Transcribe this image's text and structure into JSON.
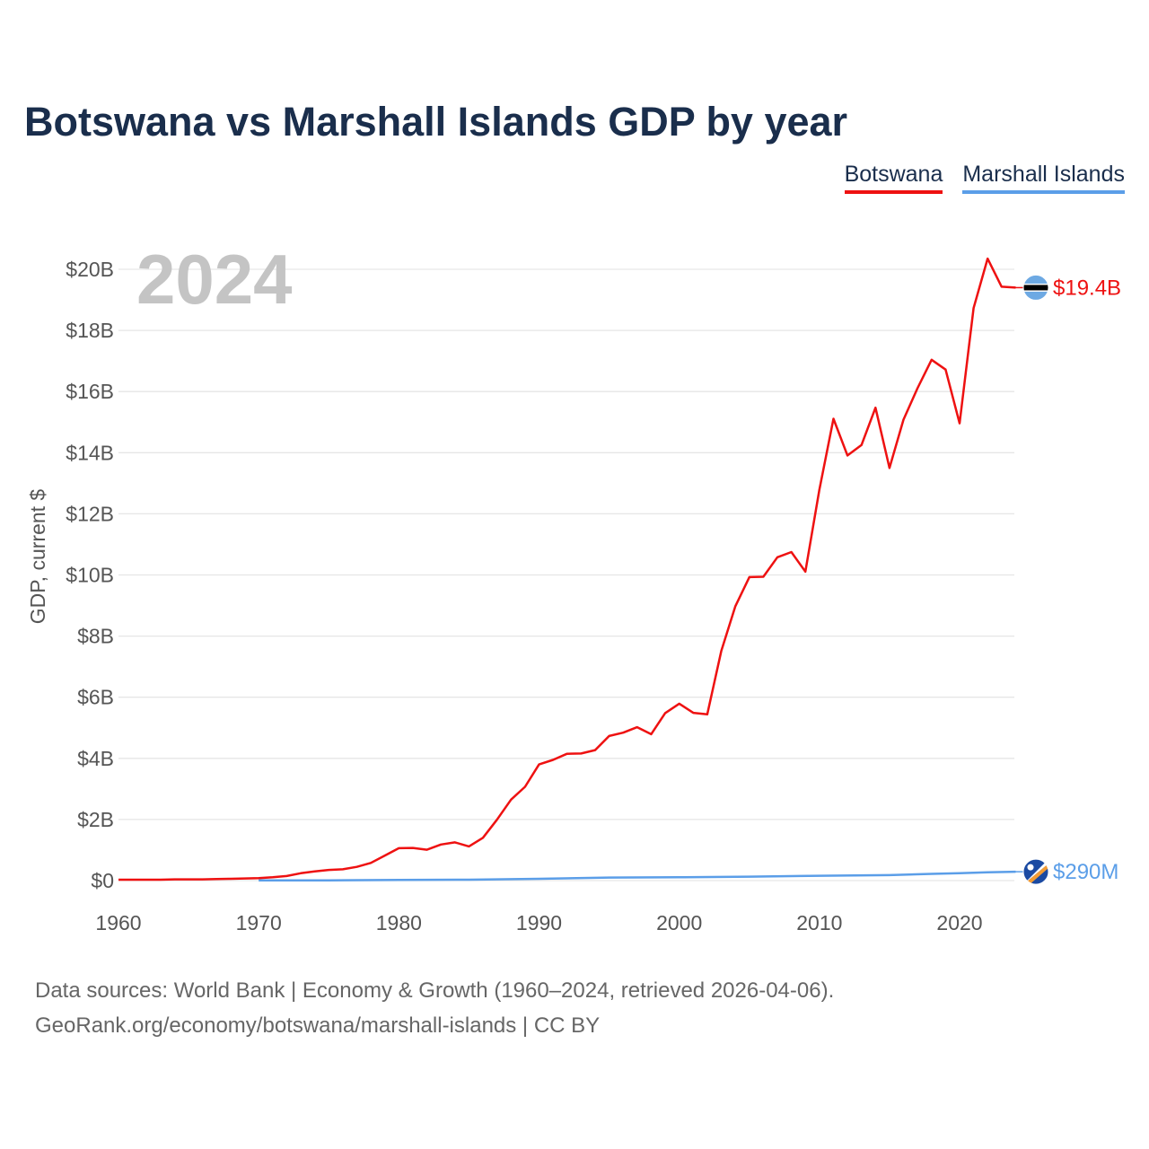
{
  "title": "Botswana vs Marshall Islands GDP by year",
  "legend": [
    {
      "label": "Botswana",
      "color": "#ee1111"
    },
    {
      "label": "Marshall Islands",
      "color": "#5b9ee8"
    }
  ],
  "source": {
    "line1": "Data sources: World Bank | Economy & Growth (1960–2024, retrieved 2026-04-06).",
    "line2": "GeoRank.org/economy/botswana/marshall-islands | CC BY"
  },
  "chart_data": {
    "type": "line",
    "title": "Botswana vs Marshall Islands GDP by year",
    "xlabel": "",
    "ylabel": "GDP, current $",
    "year_label": "2024",
    "xlim": [
      1960,
      2024
    ],
    "ylim": [
      0,
      20
    ],
    "unit": "billions USD",
    "x_ticks": [
      "1960",
      "1970",
      "1980",
      "1990",
      "2000",
      "2010",
      "2020"
    ],
    "y_ticks": [
      "$0",
      "$2B",
      "$4B",
      "$6B",
      "$8B",
      "$10B",
      "$12B",
      "$14B",
      "$16B",
      "$18B",
      "$20B"
    ],
    "grid": true,
    "series": [
      {
        "name": "Botswana",
        "color": "#ee1111",
        "end_label": "$19.4B",
        "flag_icon": "botswana-flag-icon",
        "x": [
          1960,
          1961,
          1962,
          1963,
          1964,
          1965,
          1966,
          1967,
          1968,
          1969,
          1970,
          1971,
          1972,
          1973,
          1974,
          1975,
          1976,
          1977,
          1978,
          1979,
          1980,
          1981,
          1982,
          1983,
          1984,
          1985,
          1986,
          1987,
          1988,
          1989,
          1990,
          1991,
          1992,
          1993,
          1994,
          1995,
          1996,
          1997,
          1998,
          1999,
          2000,
          2001,
          2002,
          2003,
          2004,
          2005,
          2006,
          2007,
          2008,
          2009,
          2010,
          2011,
          2012,
          2013,
          2014,
          2015,
          2016,
          2017,
          2018,
          2019,
          2020,
          2021,
          2022,
          2023,
          2024
        ],
        "values": [
          0.03,
          0.03,
          0.03,
          0.03,
          0.04,
          0.04,
          0.04,
          0.05,
          0.06,
          0.07,
          0.08,
          0.11,
          0.15,
          0.24,
          0.3,
          0.35,
          0.37,
          0.45,
          0.58,
          0.82,
          1.06,
          1.07,
          1.01,
          1.18,
          1.25,
          1.12,
          1.4,
          1.99,
          2.65,
          3.07,
          3.8,
          3.95,
          4.15,
          4.16,
          4.27,
          4.73,
          4.84,
          5.02,
          4.79,
          5.48,
          5.79,
          5.49,
          5.44,
          7.51,
          8.97,
          9.93,
          9.94,
          10.58,
          10.75,
          10.11,
          12.79,
          15.11,
          13.91,
          14.25,
          15.47,
          13.5,
          15.08,
          16.11,
          17.04,
          16.72,
          14.96,
          18.73,
          20.35,
          19.43,
          19.4
        ]
      },
      {
        "name": "Marshall Islands",
        "color": "#5b9ee8",
        "end_label": "$290M",
        "flag_icon": "marshall-islands-flag-icon",
        "x": [
          1970,
          1975,
          1980,
          1985,
          1990,
          1995,
          2000,
          2005,
          2010,
          2015,
          2018,
          2020,
          2022,
          2024
        ],
        "values": [
          0.005,
          0.01,
          0.02,
          0.03,
          0.06,
          0.1,
          0.11,
          0.13,
          0.16,
          0.18,
          0.22,
          0.24,
          0.27,
          0.29
        ]
      }
    ]
  }
}
